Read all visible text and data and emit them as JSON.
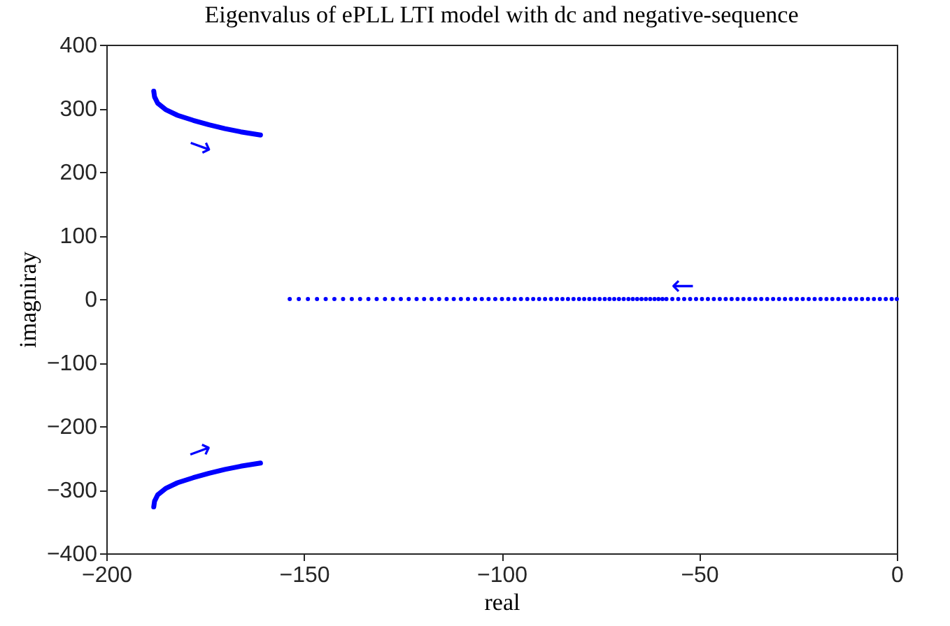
{
  "chart_data": {
    "type": "scatter",
    "title": "Eigenvalus of ePLL LTI model with dc and negative-sequence",
    "xlabel": "real",
    "ylabel": "imagniray",
    "xlim": [
      -200,
      0
    ],
    "xticks": [
      -200,
      -150,
      -100,
      -50,
      0
    ],
    "ylim": [
      -400,
      400
    ],
    "yticks": [
      -400,
      -300,
      -200,
      -100,
      0,
      100,
      200,
      300,
      400
    ],
    "grid": false,
    "series": [
      {
        "type": "line",
        "line_style": "solid",
        "color": "#0000ff",
        "x": [
          -188,
          -187.8,
          -187,
          -185,
          -182,
          -178,
          -174,
          -170,
          -166,
          -161
        ],
        "values": [
          327,
          318,
          308,
          298,
          289,
          281,
          274,
          268,
          263,
          258
        ]
      },
      {
        "type": "line",
        "line_style": "solid",
        "color": "#0000ff",
        "x": [
          -188,
          -187.8,
          -187,
          -185,
          -182,
          -178,
          -174,
          -170,
          -166,
          -161
        ],
        "values": [
          -327,
          -318,
          -308,
          -298,
          -289,
          -281,
          -274,
          -268,
          -263,
          -258
        ]
      },
      {
        "marker": "circle",
        "color": "#0000ff",
        "x": [
          -153.6,
          -151.3,
          -149.0,
          -146.7,
          -144.5,
          -142.3,
          -140.1,
          -137.9,
          -135.8,
          -133.7,
          -131.6,
          -129.5,
          -127.5,
          -125.5,
          -123.5,
          -121.5,
          -119.6,
          -117.7,
          -115.8,
          -113.9,
          -112.1,
          -110.3,
          -108.5,
          -106.7,
          -105.0,
          -103.3,
          -101.6,
          -99.9,
          -98.3,
          -96.7,
          -95.1,
          -93.5,
          -92.0,
          -90.5,
          -89.0,
          -87.5,
          -86.0,
          -84.6,
          -83.2,
          -81.8,
          -80.4,
          -79.1,
          -77.8,
          -76.5,
          -75.2,
          -73.9,
          -72.7,
          -71.5,
          -70.3,
          -69.1,
          -67.9,
          -66.8,
          -65.7,
          -64.6,
          -63.5,
          -62.4,
          -61.3,
          -60.3,
          -59.3,
          -58.3,
          -56.8,
          -55.3,
          -53.8,
          -52.3,
          -50.8,
          -49.3,
          -47.8,
          -46.3,
          -44.8,
          -43.3,
          -41.8,
          -40.3,
          -38.8,
          -37.3,
          -35.8,
          -34.3,
          -32.8,
          -31.3,
          -29.8,
          -28.3,
          -26.8,
          -25.3,
          -23.8,
          -22.3,
          -20.8,
          -19.3,
          -17.8,
          -16.3,
          -14.8,
          -13.3,
          -11.8,
          -10.3,
          -8.8,
          -7.3,
          -5.8,
          -4.3,
          -2.8,
          -1.3,
          0
        ],
        "values": [
          0,
          0,
          0,
          0,
          0,
          0,
          0,
          0,
          0,
          0,
          0,
          0,
          0,
          0,
          0,
          0,
          0,
          0,
          0,
          0,
          0,
          0,
          0,
          0,
          0,
          0,
          0,
          0,
          0,
          0,
          0,
          0,
          0,
          0,
          0,
          0,
          0,
          0,
          0,
          0,
          0,
          0,
          0,
          0,
          0,
          0,
          0,
          0,
          0,
          0,
          0,
          0,
          0,
          0,
          0,
          0,
          0,
          0,
          0,
          0,
          0,
          0,
          0,
          0,
          0,
          0,
          0,
          0,
          0,
          0,
          0,
          0,
          0,
          0,
          0,
          0,
          0,
          0,
          0,
          0,
          0,
          0,
          0,
          0,
          0,
          0,
          0,
          0,
          0,
          0,
          0,
          0,
          0,
          0,
          0,
          0,
          0,
          0,
          0
        ]
      }
    ],
    "annotations": [
      "→",
      "→",
      "←"
    ]
  }
}
